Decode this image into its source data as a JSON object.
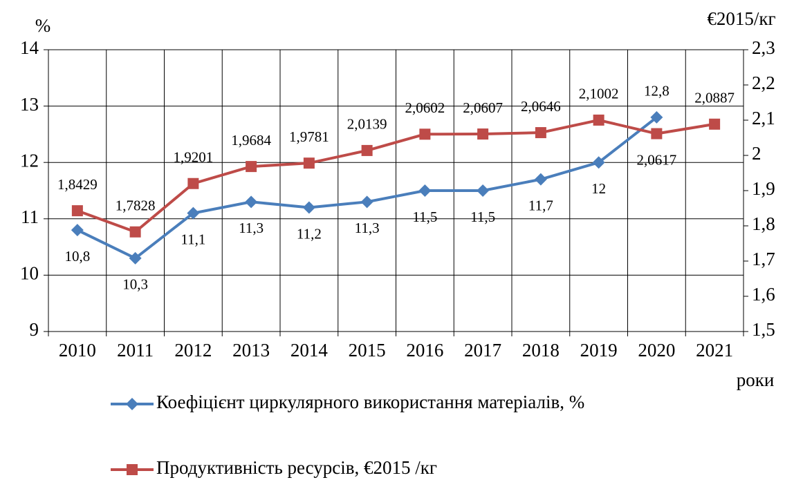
{
  "chart_data": {
    "type": "line",
    "categories": [
      "2010",
      "2011",
      "2012",
      "2013",
      "2014",
      "2015",
      "2016",
      "2017",
      "2018",
      "2019",
      "2020",
      "2021"
    ],
    "y_label": "%",
    "y2_label": "€2015/кг",
    "x_label": "роки",
    "ylim": [
      9,
      14
    ],
    "yticks": [
      9,
      10,
      11,
      12,
      13,
      14
    ],
    "y2lim": [
      1.5,
      2.3
    ],
    "y2ticks": [
      {
        "value": 1.5,
        "label": "1,5"
      },
      {
        "value": 1.6,
        "label": "1,6"
      },
      {
        "value": 1.7,
        "label": "1,7"
      },
      {
        "value": 1.8,
        "label": "1,8"
      },
      {
        "value": 1.9,
        "label": "1,9"
      },
      2,
      {
        "value": 2.1,
        "label": "2,1"
      },
      {
        "value": 2.2,
        "label": "2,2"
      },
      {
        "value": 2.3,
        "label": "2,3"
      }
    ],
    "grid": true,
    "series": [
      {
        "name": "Коефіцієнт циркулярного використання матеріалів, %",
        "color": "#4a7ebb",
        "marker": "diamond",
        "values": [
          10.8,
          10.3,
          11.1,
          11.3,
          11.2,
          11.3,
          11.5,
          11.5,
          11.7,
          12,
          12.8,
          null
        ],
        "value_labels": [
          "10,8",
          "10,3",
          "11,1",
          "11,3",
          "11,2",
          "11,3",
          "11,5",
          "11,5",
          "11,7",
          "12",
          "12,8",
          null
        ]
      },
      {
        "name": "Продуктивність ресурсів, €2015 /кг",
        "color": "#be4b48",
        "marker": "square",
        "axis": "y2",
        "values": [
          1.8429,
          1.7828,
          1.9201,
          1.9684,
          1.9781,
          2.0139,
          2.0602,
          2.0607,
          2.0646,
          2.1002,
          2.0617,
          2.0887
        ],
        "value_labels": [
          "1,8429",
          "1,7828",
          "1,9201",
          "1,9684",
          "1,9781",
          "2,0139",
          "2,0602",
          "2,0607",
          "2,0646",
          "2,1002",
          "2,0617",
          "2,0887"
        ]
      }
    ]
  }
}
